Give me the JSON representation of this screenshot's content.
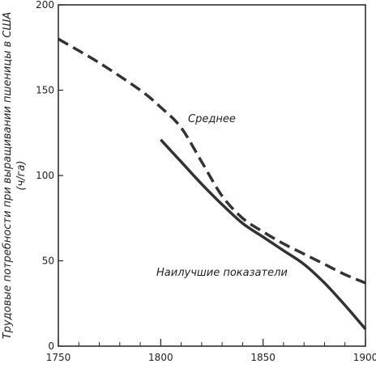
{
  "chart_data": {
    "type": "line",
    "ylabel_line1": "Трудовые потребности при выращивании пшеницы в США",
    "ylabel_line2": "(ч/га)",
    "xlim": [
      1750,
      1900
    ],
    "ylim": [
      0,
      200
    ],
    "x_ticks": [
      1750,
      1800,
      1850,
      1900
    ],
    "y_ticks": [
      0,
      50,
      100,
      150,
      200
    ],
    "series": [
      {
        "name": "Среднее",
        "style": "dashed",
        "color": "#333333",
        "x": [
          1750,
          1770,
          1790,
          1800,
          1810,
          1820,
          1830,
          1840,
          1850,
          1860,
          1870,
          1880,
          1890,
          1900
        ],
        "y": [
          180,
          166,
          150,
          140,
          128,
          108,
          88,
          75,
          67,
          60,
          54,
          48,
          42,
          37
        ]
      },
      {
        "name": "Наилучшие показатели",
        "style": "solid",
        "color": "#333333",
        "x": [
          1800,
          1810,
          1820,
          1830,
          1840,
          1850,
          1860,
          1870,
          1880,
          1890,
          1900
        ],
        "y": [
          121,
          108,
          95,
          83,
          72,
          64,
          56,
          48,
          37,
          24,
          10
        ]
      }
    ]
  }
}
